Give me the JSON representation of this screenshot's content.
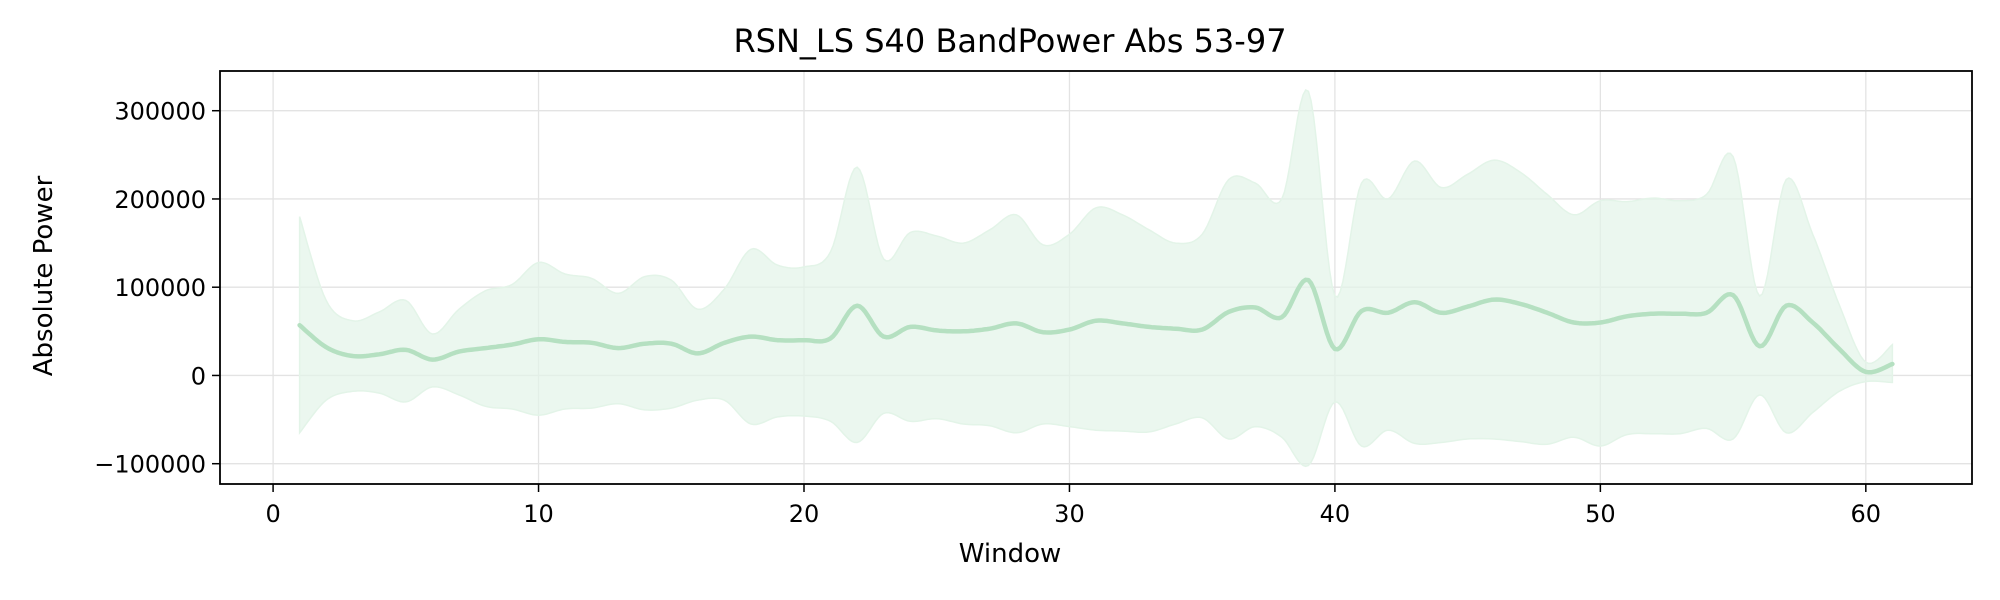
{
  "chart_data": {
    "type": "area",
    "title": "RSN_LS S40 BandPower Abs 53-97",
    "xlabel": "Window",
    "ylabel": "Absolute Power",
    "xlim": [
      -2,
      64
    ],
    "ylim": [
      -123000,
      345000
    ],
    "xticks": [
      0,
      10,
      20,
      30,
      40,
      50,
      60
    ],
    "xtick_labels": [
      "0",
      "10",
      "20",
      "30",
      "40",
      "50",
      "60"
    ],
    "yticks": [
      -100000,
      0,
      100000,
      200000,
      300000
    ],
    "ytick_labels": [
      "−100000",
      "0",
      "100000",
      "200000",
      "300000"
    ],
    "grid": true,
    "colors": {
      "line": "#b5e0c1",
      "band": "#e3f4e8"
    },
    "series": [
      {
        "role": "mean",
        "x": [
          1,
          2,
          3,
          4,
          5,
          6,
          7,
          8,
          9,
          10,
          11,
          12,
          13,
          14,
          15,
          16,
          17,
          18,
          19,
          20,
          21,
          22,
          23,
          24,
          25,
          26,
          27,
          28,
          29,
          30,
          31,
          32,
          33,
          34,
          35,
          36,
          37,
          38,
          39,
          40,
          41,
          42,
          43,
          44,
          45,
          46,
          47,
          48,
          49,
          50,
          51,
          52,
          53,
          54,
          55,
          56,
          57,
          58,
          59,
          60,
          61
        ],
        "values": [
          57000,
          32000,
          22000,
          24000,
          29000,
          18000,
          27000,
          31000,
          35000,
          41000,
          38000,
          37000,
          31000,
          36000,
          36000,
          25000,
          37000,
          44000,
          40000,
          40000,
          42000,
          79000,
          44000,
          55000,
          51000,
          50000,
          53000,
          59000,
          49000,
          52000,
          62000,
          59000,
          55000,
          53000,
          52000,
          72000,
          77000,
          66000,
          108000,
          30000,
          73000,
          71000,
          83000,
          71000,
          78000,
          86000,
          81000,
          71000,
          60000,
          60000,
          67000,
          70000,
          70000,
          71000,
          91000,
          33000,
          79000,
          60000,
          30000,
          4000,
          13000
        ]
      },
      {
        "role": "upper",
        "x": [
          1,
          2,
          3,
          4,
          5,
          6,
          7,
          8,
          9,
          10,
          11,
          12,
          13,
          14,
          15,
          16,
          17,
          18,
          19,
          20,
          21,
          22,
          23,
          24,
          25,
          26,
          27,
          28,
          29,
          30,
          31,
          32,
          33,
          34,
          35,
          36,
          37,
          38,
          39,
          40,
          41,
          42,
          43,
          44,
          45,
          46,
          47,
          48,
          49,
          50,
          51,
          52,
          53,
          54,
          55,
          56,
          57,
          58,
          59,
          60,
          61
        ],
        "values": [
          180000,
          85000,
          62000,
          72000,
          85000,
          47000,
          75000,
          96000,
          103000,
          128000,
          115000,
          110000,
          93000,
          112000,
          108000,
          75000,
          98000,
          143000,
          125000,
          123000,
          140000,
          236000,
          132000,
          162000,
          158000,
          150000,
          165000,
          182000,
          148000,
          160000,
          190000,
          182000,
          165000,
          150000,
          160000,
          222000,
          218000,
          200000,
          322000,
          90000,
          218000,
          200000,
          243000,
          213000,
          228000,
          244000,
          230000,
          205000,
          182000,
          198000,
          197000,
          201000,
          198000,
          205000,
          248000,
          90000,
          222000,
          160000,
          80000,
          15000,
          35000
        ]
      },
      {
        "role": "lower",
        "x": [
          1,
          2,
          3,
          4,
          5,
          6,
          7,
          8,
          9,
          10,
          11,
          12,
          13,
          14,
          15,
          16,
          17,
          18,
          19,
          20,
          21,
          22,
          23,
          24,
          25,
          26,
          27,
          28,
          29,
          30,
          31,
          32,
          33,
          34,
          35,
          36,
          37,
          38,
          39,
          40,
          41,
          42,
          43,
          44,
          45,
          46,
          47,
          48,
          49,
          50,
          51,
          52,
          53,
          54,
          55,
          56,
          57,
          58,
          59,
          60,
          61
        ],
        "values": [
          -65000,
          -28000,
          -18000,
          -20000,
          -30000,
          -13000,
          -22000,
          -35000,
          -38000,
          -45000,
          -38000,
          -37000,
          -32000,
          -39000,
          -37000,
          -28000,
          -28000,
          -55000,
          -47000,
          -46000,
          -52000,
          -76000,
          -43000,
          -52000,
          -49000,
          -55000,
          -57000,
          -65000,
          -55000,
          -58000,
          -62000,
          -63000,
          -64000,
          -55000,
          -48000,
          -72000,
          -58000,
          -70000,
          -102000,
          -30000,
          -80000,
          -62000,
          -77000,
          -76000,
          -72000,
          -72000,
          -75000,
          -78000,
          -70000,
          -80000,
          -67000,
          -66000,
          -66000,
          -60000,
          -72000,
          -22000,
          -65000,
          -42000,
          -18000,
          -7000,
          -8000
        ]
      }
    ]
  }
}
